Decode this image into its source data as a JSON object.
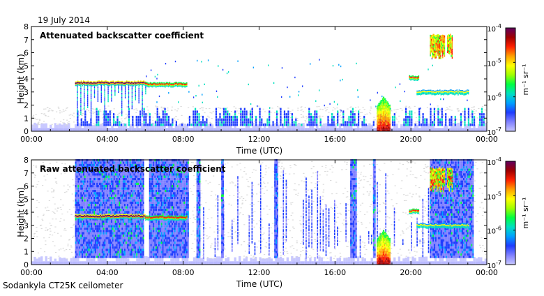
{
  "date_label": "19 July 2014",
  "footer_label": "Sodankyla CT25K ceilometer",
  "colors": {
    "gray": "#d8d8d8",
    "scale": [
      "#c8c8ff",
      "#8080ff",
      "#1e3cff",
      "#00a0ff",
      "#00e0c0",
      "#00ff40",
      "#a0ff00",
      "#ffff00",
      "#ffa000",
      "#ff2000",
      "#a00000",
      "#600060"
    ]
  },
  "colorbar": {
    "ticks": [
      {
        "base": "10",
        "exp": "-4"
      },
      {
        "base": "10",
        "exp": "-5"
      },
      {
        "base": "10",
        "exp": "-6"
      },
      {
        "base": "10",
        "exp": "-7"
      }
    ],
    "unit": "m⁻¹ sr⁻¹"
  },
  "chart_data": [
    {
      "type": "heatmap",
      "title": "Attenuated backscatter coefficient",
      "xlabel": "Time (UTC)",
      "ylabel": "Height (km)",
      "x_ticks": [
        "00:00",
        "04:00",
        "08:00",
        "12:00",
        "16:00",
        "20:00",
        "00:00"
      ],
      "y_ticks": [
        "0",
        "1",
        "2",
        "3",
        "4",
        "5",
        "6",
        "7",
        "8"
      ],
      "xlim": [
        0,
        24
      ],
      "ylim": [
        0,
        8
      ],
      "cloud_layers": [
        {
          "t_start": 2.3,
          "t_end": 6.0,
          "height_km": 3.7,
          "strength": "high"
        },
        {
          "t_start": 6.0,
          "t_end": 8.2,
          "height_km": 3.6,
          "strength": "medium"
        },
        {
          "t_start": 19.9,
          "t_end": 20.4,
          "height_km": 4.1,
          "strength": "medium"
        },
        {
          "t_start": 20.3,
          "t_end": 23.0,
          "height_km": 3.0,
          "strength": "low"
        }
      ],
      "precipitation": {
        "t_start": 18.2,
        "t_end": 18.9,
        "height_km": [
          0,
          2.6
        ]
      },
      "upper_cloud": {
        "t_start": 21.0,
        "t_end": 22.2,
        "height_km": [
          5.5,
          7.3
        ]
      },
      "colorbar_range": [
        1e-07,
        0.0001
      ]
    },
    {
      "type": "heatmap",
      "title": "Raw attenuated backscatter coefficient",
      "xlabel": "Time (UTC)",
      "ylabel": "Height (km)",
      "x_ticks": [
        "00:00",
        "04:00",
        "08:00",
        "12:00",
        "16:00",
        "20:00",
        "00:00"
      ],
      "y_ticks": [
        "0",
        "1",
        "2",
        "3",
        "4",
        "5",
        "6",
        "7",
        "8"
      ],
      "xlim": [
        0,
        24
      ],
      "ylim": [
        0,
        8
      ],
      "cloud_layers": [
        {
          "t_start": 2.3,
          "t_end": 6.0,
          "height_km": 3.7,
          "strength": "high"
        },
        {
          "t_start": 6.0,
          "t_end": 8.2,
          "height_km": 3.6,
          "strength": "medium"
        },
        {
          "t_start": 19.9,
          "t_end": 20.4,
          "height_km": 4.1,
          "strength": "medium"
        },
        {
          "t_start": 20.3,
          "t_end": 23.0,
          "height_km": 3.0,
          "strength": "low"
        }
      ],
      "precipitation": {
        "t_start": 18.2,
        "t_end": 18.9,
        "height_km": [
          0,
          2.6
        ]
      },
      "upper_cloud": {
        "t_start": 21.0,
        "t_end": 22.2,
        "height_km": [
          5.5,
          7.3
        ]
      },
      "colorbar_range": [
        1e-07,
        0.0001
      ]
    }
  ]
}
